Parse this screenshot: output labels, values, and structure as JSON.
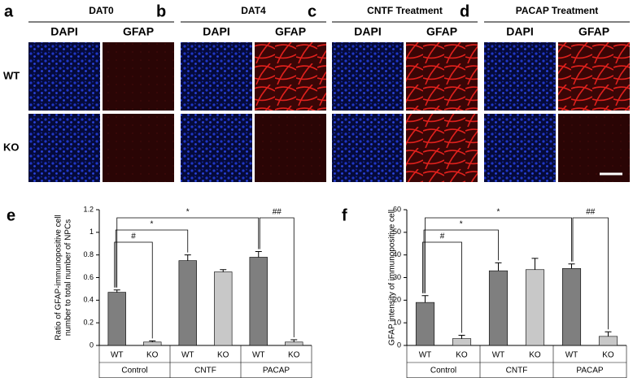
{
  "panels": [
    {
      "letter": "a",
      "title": "DAT0",
      "columns": [
        "DAPI",
        "GFAP"
      ]
    },
    {
      "letter": "b",
      "title": "DAT4",
      "columns": [
        "DAPI",
        "GFAP"
      ]
    },
    {
      "letter": "c",
      "title": "CNTF Treatment",
      "columns": [
        "DAPI",
        "GFAP"
      ]
    },
    {
      "letter": "d",
      "title": "PACAP Treatment",
      "columns": [
        "DAPI",
        "GFAP"
      ]
    }
  ],
  "rows": [
    "WT",
    "KO"
  ],
  "chart_data": [
    {
      "type": "bar",
      "letter": "e",
      "y_label": [
        "Ratio of GFAP-immunopositive cell",
        "number to total number of NPCs"
      ],
      "categories": [
        "WT",
        "KO",
        "WT",
        "KO",
        "WT",
        "KO"
      ],
      "groups": [
        "Control",
        "CNTF",
        "PACAP"
      ],
      "values": [
        0.47,
        0.03,
        0.75,
        0.65,
        0.78,
        0.03
      ],
      "errors": [
        0.02,
        0.01,
        0.05,
        0.02,
        0.05,
        0.02
      ],
      "colors": [
        "#7f7f7f",
        "#c8c8c8",
        "#7f7f7f",
        "#c8c8c8",
        "#7f7f7f",
        "#c8c8c8"
      ],
      "ylim": [
        0,
        1.2
      ],
      "yticks": [
        0,
        0.2,
        0.4,
        0.6,
        0.8,
        1,
        1.2
      ],
      "annotations": [
        "#",
        "*",
        "*",
        "##"
      ]
    },
    {
      "type": "bar",
      "letter": "f",
      "y_label": [
        "GFAP intensity of immunopositive cell"
      ],
      "categories": [
        "WT",
        "KO",
        "WT",
        "KO",
        "WT",
        "KO"
      ],
      "groups": [
        "Control",
        "CNTF",
        "PACAP"
      ],
      "values": [
        19,
        3,
        33,
        33.5,
        34,
        4
      ],
      "errors": [
        3,
        1.5,
        3.5,
        5,
        2,
        2
      ],
      "colors": [
        "#7f7f7f",
        "#c8c8c8",
        "#7f7f7f",
        "#c8c8c8",
        "#7f7f7f",
        "#c8c8c8"
      ],
      "ylim": [
        0,
        60
      ],
      "yticks": [
        0,
        10,
        20,
        30,
        40,
        50,
        60
      ],
      "annotations": [
        "#",
        "*",
        "*",
        "##"
      ]
    }
  ]
}
